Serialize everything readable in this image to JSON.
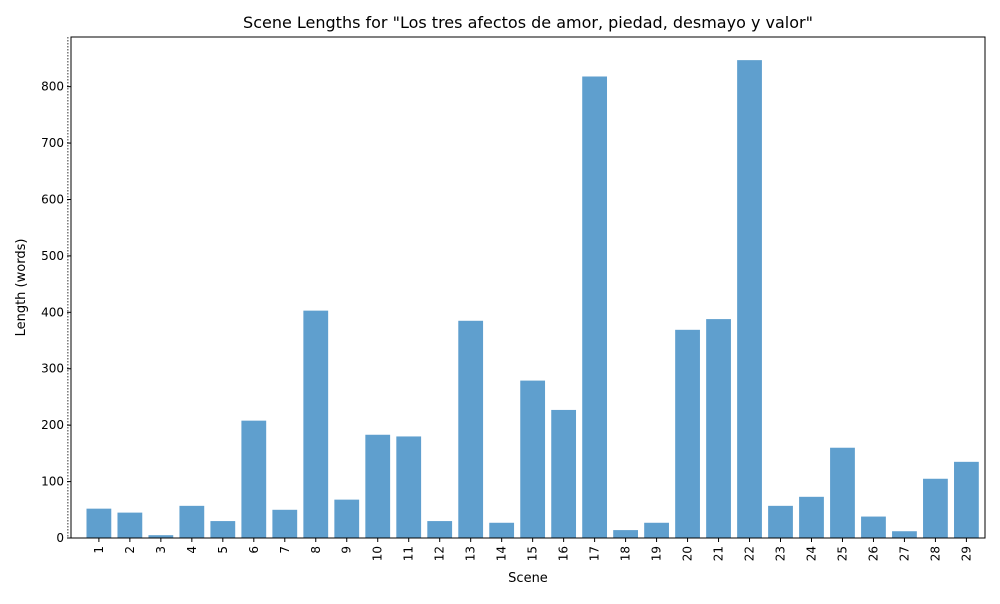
{
  "chart_data": {
    "type": "bar",
    "title": "Scene Lengths for \"Los tres afectos de amor, piedad, desmayo y valor\"",
    "xlabel": "Scene",
    "ylabel": "Length (words)",
    "categories": [
      "1",
      "2",
      "3",
      "4",
      "5",
      "6",
      "7",
      "8",
      "9",
      "10",
      "11",
      "12",
      "13",
      "14",
      "15",
      "16",
      "17",
      "18",
      "19",
      "20",
      "21",
      "22",
      "23",
      "24",
      "25",
      "26",
      "27",
      "28",
      "29"
    ],
    "values": [
      52,
      45,
      5,
      57,
      30,
      208,
      50,
      403,
      68,
      183,
      180,
      30,
      385,
      27,
      279,
      227,
      818,
      14,
      27,
      369,
      388,
      847,
      57,
      73,
      160,
      38,
      12,
      105,
      135
    ],
    "ylim": [
      0,
      888
    ],
    "yticks": [
      0,
      100,
      200,
      300,
      400,
      500,
      600,
      700,
      800
    ],
    "bar_color": "#5f9fce",
    "vline_at_category": "0",
    "grid": false
  }
}
